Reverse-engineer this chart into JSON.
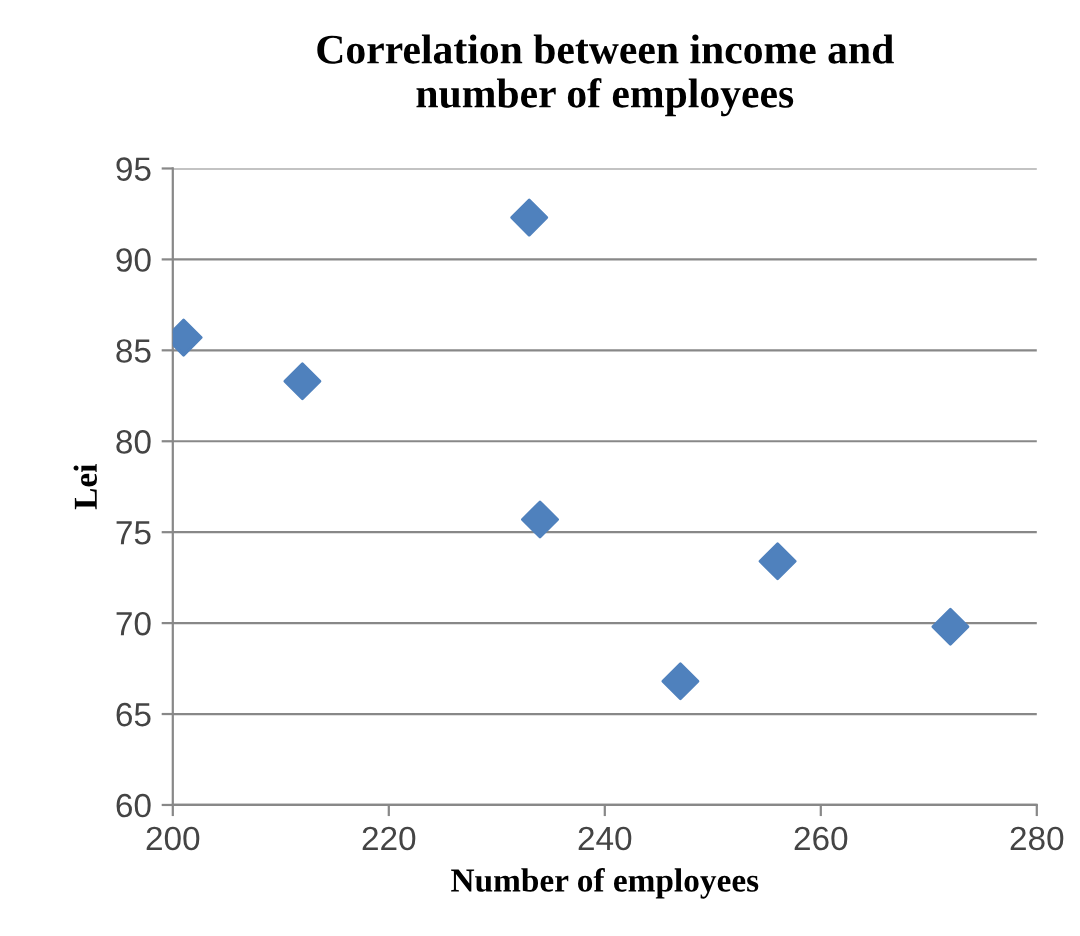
{
  "chart_data": {
    "type": "scatter",
    "title": "Correlation between income and\nnumber of employees",
    "xlabel": "Number of employees",
    "ylabel": "Lei",
    "x": [
      201,
      212,
      233,
      234,
      247,
      256,
      272
    ],
    "series": [
      {
        "color": "#4f81bd",
        "values": [
          85.7,
          83.3,
          92.3,
          75.7,
          66.8,
          73.4,
          69.8
        ]
      }
    ],
    "xlim": [
      200,
      280
    ],
    "xticks": [
      200,
      220,
      240,
      260,
      280
    ],
    "ylim": [
      60,
      95
    ],
    "yticks": [
      60,
      65,
      70,
      75,
      80,
      85,
      90,
      95
    ],
    "grid": "y",
    "marker": "diamond",
    "legend": false
  }
}
